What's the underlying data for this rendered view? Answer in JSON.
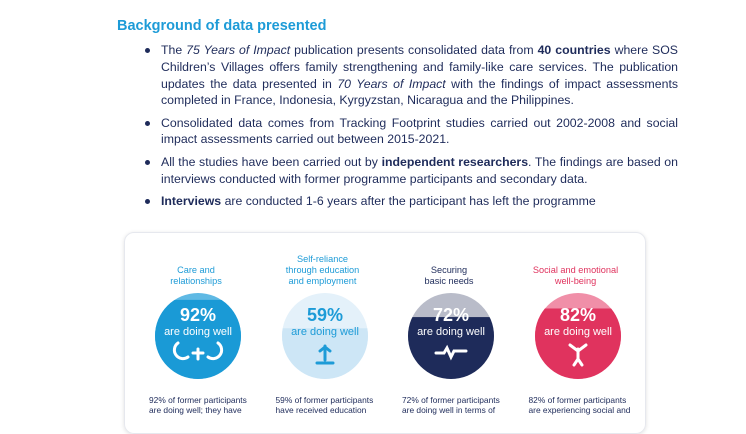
{
  "heading": "Background of data presented",
  "bullets": [
    [
      "The ",
      "75 Years of Impact",
      " publication presents consolidated data from ",
      "40 countries",
      " where SOS Children’s Villages offers family strengthening and family-like care services. The publication updates the data presented in ",
      "70 Years of Impact",
      " with the findings of impact assessments completed in France, Indonesia, Kyrgyzstan, Nicaragua and the Philippines."
    ],
    [
      "Consolidated data comes from Tracking Footprint studies carried out 2002-2008 and social impact assessments carried out between 2015-2021."
    ],
    [
      "All the studies have been carried out by ",
      "independent researchers",
      ". The findings are based on interviews conducted with former programme participants and secondary data."
    ],
    [
      "Interviews",
      " are conducted 1-6 years after the participant has left the programme"
    ]
  ],
  "cards": [
    {
      "title_lines": [
        "Care and",
        "relationships"
      ],
      "value": 92,
      "value_label": "92%",
      "caption": "are doing well",
      "color": "#1a9ad6",
      "light": "#5fb9e4",
      "text_color": "#1d9bd7",
      "number_color": "#ffffff",
      "description": "92% of former participants are doing well; they have"
    },
    {
      "title_lines": [
        "Self-reliance",
        "through education",
        "and employment"
      ],
      "value": 59,
      "value_label": "59%",
      "caption": "are doing well",
      "color": "#cde6f6",
      "light": "#e4f1fa",
      "text_color": "#1d9bd7",
      "number_color": "#1d9bd7",
      "description": "59% of former participants have received education"
    },
    {
      "title_lines": [
        "Securing",
        "basic needs"
      ],
      "value": 72,
      "value_label": "72%",
      "caption": "are doing well",
      "color": "#1e2b5a",
      "light": "#b9bcc9",
      "text_color": "#1e2b5a",
      "number_color": "#ffffff",
      "description": "72% of former participants are doing well in terms of"
    },
    {
      "title_lines": [
        "Social and emotional",
        "well-being"
      ],
      "value": 82,
      "value_label": "82%",
      "caption": "are doing well",
      "color": "#e0335e",
      "light": "#f08fa8",
      "text_color": "#e0335e",
      "number_color": "#ffffff",
      "description": "82% of former participants are experiencing social and"
    }
  ]
}
